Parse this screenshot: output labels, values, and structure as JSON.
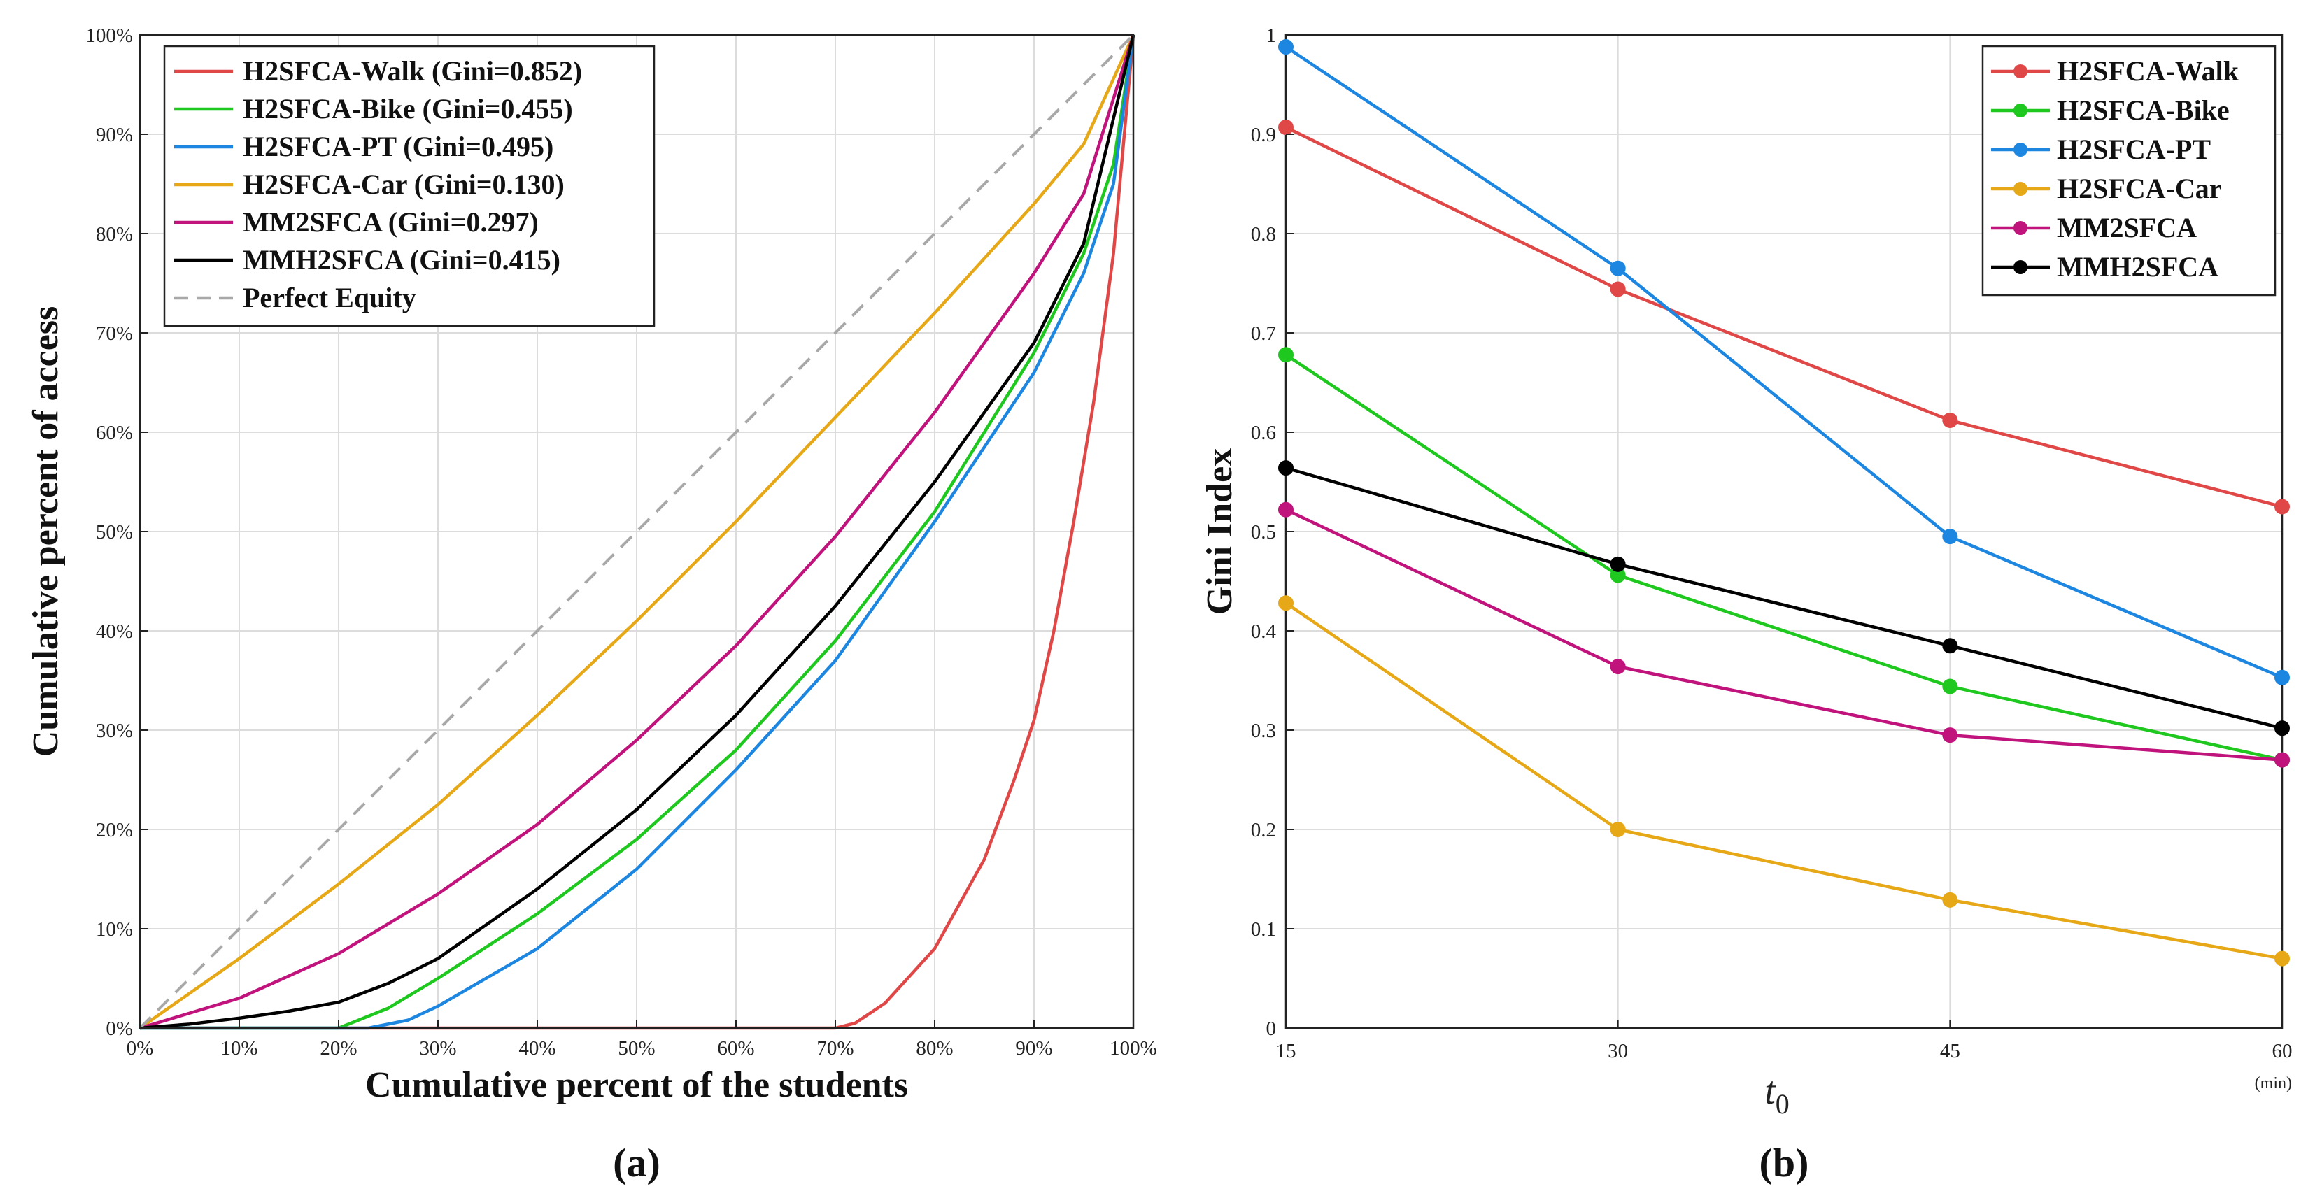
{
  "chart_data": [
    {
      "type": "line",
      "panel_label": "(a)",
      "xlabel": "Cumulative percent of the students",
      "ylabel": "Cumulative percent of access",
      "xlim": [
        0,
        100
      ],
      "ylim": [
        0,
        100
      ],
      "xticks": [
        "0%",
        "10%",
        "20%",
        "30%",
        "40%",
        "50%",
        "60%",
        "70%",
        "80%",
        "90%",
        "100%"
      ],
      "yticks": [
        "0%",
        "10%",
        "20%",
        "30%",
        "40%",
        "50%",
        "60%",
        "70%",
        "80%",
        "90%",
        "100%"
      ],
      "grid": true,
      "legend_position": "top-left",
      "series": [
        {
          "name": "H2SFCA-Walk (Gini=0.852)",
          "color": "#e04848",
          "x": [
            0,
            70,
            72,
            75,
            80,
            85,
            88,
            90,
            92,
            94,
            96,
            98,
            100
          ],
          "y": [
            0,
            0,
            0.5,
            2.5,
            8,
            17,
            25,
            31,
            40,
            51,
            63,
            78,
            100
          ]
        },
        {
          "name": "H2SFCA-Bike (Gini=0.455)",
          "color": "#1ec81e",
          "x": [
            0,
            20,
            25,
            30,
            40,
            50,
            60,
            70,
            80,
            90,
            95,
            98,
            100
          ],
          "y": [
            0,
            0,
            2,
            5,
            11.5,
            19,
            28,
            39,
            52,
            68,
            78,
            87,
            100
          ]
        },
        {
          "name": "H2SFCA-PT (Gini=0.495)",
          "color": "#1c86e0",
          "x": [
            0,
            23,
            27,
            30,
            40,
            50,
            60,
            70,
            80,
            90,
            95,
            98,
            100
          ],
          "y": [
            0,
            0,
            0.8,
            2.2,
            8,
            16,
            26,
            37,
            51,
            66,
            76,
            85,
            100
          ]
        },
        {
          "name": "H2SFCA-Car (Gini=0.130)",
          "color": "#e6a817",
          "x": [
            0,
            10,
            20,
            30,
            40,
            50,
            60,
            70,
            80,
            90,
            95,
            100
          ],
          "y": [
            0,
            7,
            14.5,
            22.5,
            31.5,
            41,
            51,
            61.5,
            72,
            83,
            89,
            100
          ]
        },
        {
          "name": "MM2SFCA (Gini=0.297)",
          "color": "#c0137c",
          "x": [
            0,
            10,
            20,
            30,
            40,
            50,
            60,
            70,
            80,
            90,
            95,
            100
          ],
          "y": [
            0,
            3,
            7.5,
            13.5,
            20.5,
            29,
            38.5,
            49.5,
            62,
            76,
            84,
            100
          ]
        },
        {
          "name": "MMH2SFCA (Gini=0.415)",
          "color": "#000000",
          "x": [
            0,
            5,
            10,
            15,
            20,
            25,
            30,
            40,
            50,
            60,
            70,
            80,
            90,
            95,
            100
          ],
          "y": [
            0,
            0.4,
            1,
            1.7,
            2.6,
            4.5,
            7,
            14,
            22,
            31.5,
            42.5,
            55,
            69,
            79,
            100
          ]
        },
        {
          "name": "Perfect Equity",
          "color": "#a8a8a8",
          "dashed": true,
          "x": [
            0,
            100
          ],
          "y": [
            0,
            100
          ]
        }
      ]
    },
    {
      "type": "line",
      "panel_label": "(b)",
      "xlabel": "t",
      "xlabel_sub": "0",
      "xunit": "(min)",
      "ylabel": "Gini Index",
      "x": [
        15,
        30,
        45,
        60
      ],
      "xlim": [
        15,
        60
      ],
      "ylim": [
        0,
        1
      ],
      "xticks": [
        "15",
        "30",
        "45",
        "60"
      ],
      "yticks": [
        "0",
        "0.1",
        "0.2",
        "0.3",
        "0.4",
        "0.5",
        "0.6",
        "0.7",
        "0.8",
        "0.9",
        "1"
      ],
      "grid": true,
      "legend_position": "top-right",
      "series": [
        {
          "name": "H2SFCA-Walk",
          "color": "#e04848",
          "values": [
            0.907,
            0.744,
            0.612,
            0.525
          ]
        },
        {
          "name": "H2SFCA-Bike",
          "color": "#1ec81e",
          "values": [
            0.678,
            0.456,
            0.344,
            0.27
          ]
        },
        {
          "name": "H2SFCA-PT",
          "color": "#1c86e0",
          "values": [
            0.988,
            0.765,
            0.495,
            0.353
          ]
        },
        {
          "name": "H2SFCA-Car",
          "color": "#e6a817",
          "values": [
            0.428,
            0.2,
            0.129,
            0.07
          ]
        },
        {
          "name": "MM2SFCA",
          "color": "#c0137c",
          "values": [
            0.522,
            0.364,
            0.295,
            0.27
          ]
        },
        {
          "name": "MMH2SFCA",
          "color": "#000000",
          "values": [
            0.564,
            0.467,
            0.385,
            0.302
          ]
        }
      ]
    }
  ]
}
